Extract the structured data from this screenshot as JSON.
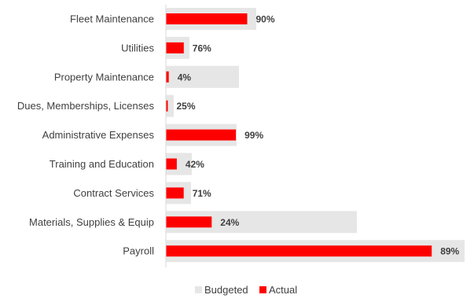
{
  "chart_data": {
    "type": "bar",
    "orientation": "horizontal",
    "title": "",
    "xlabel": "",
    "ylabel": "",
    "categories": [
      "Fleet Maintenance",
      "Utilities",
      "Property Maintenance",
      "Dues, Memberships, Licenses",
      "Administrative Expenses",
      "Training and Education",
      "Contract Services",
      "Materials, Supplies & Equip",
      "Payroll"
    ],
    "series": [
      {
        "name": "Budgeted",
        "color": "#e6e6e6",
        "values": [
          115,
          30,
          93,
          10,
          90,
          33,
          32,
          243,
          380
        ]
      },
      {
        "name": "Actual",
        "color": "#ff0000",
        "values": [
          103.5,
          22.8,
          3.7,
          2.5,
          89.1,
          13.9,
          22.7,
          58.3,
          338.2
        ]
      }
    ],
    "data_labels": [
      "90%",
      "76%",
      "4%",
      "25%",
      "99%",
      "42%",
      "71%",
      "24%",
      "89%"
    ],
    "xlim": [
      0,
      380
    ],
    "grid": false,
    "legend": "bottom-center"
  }
}
